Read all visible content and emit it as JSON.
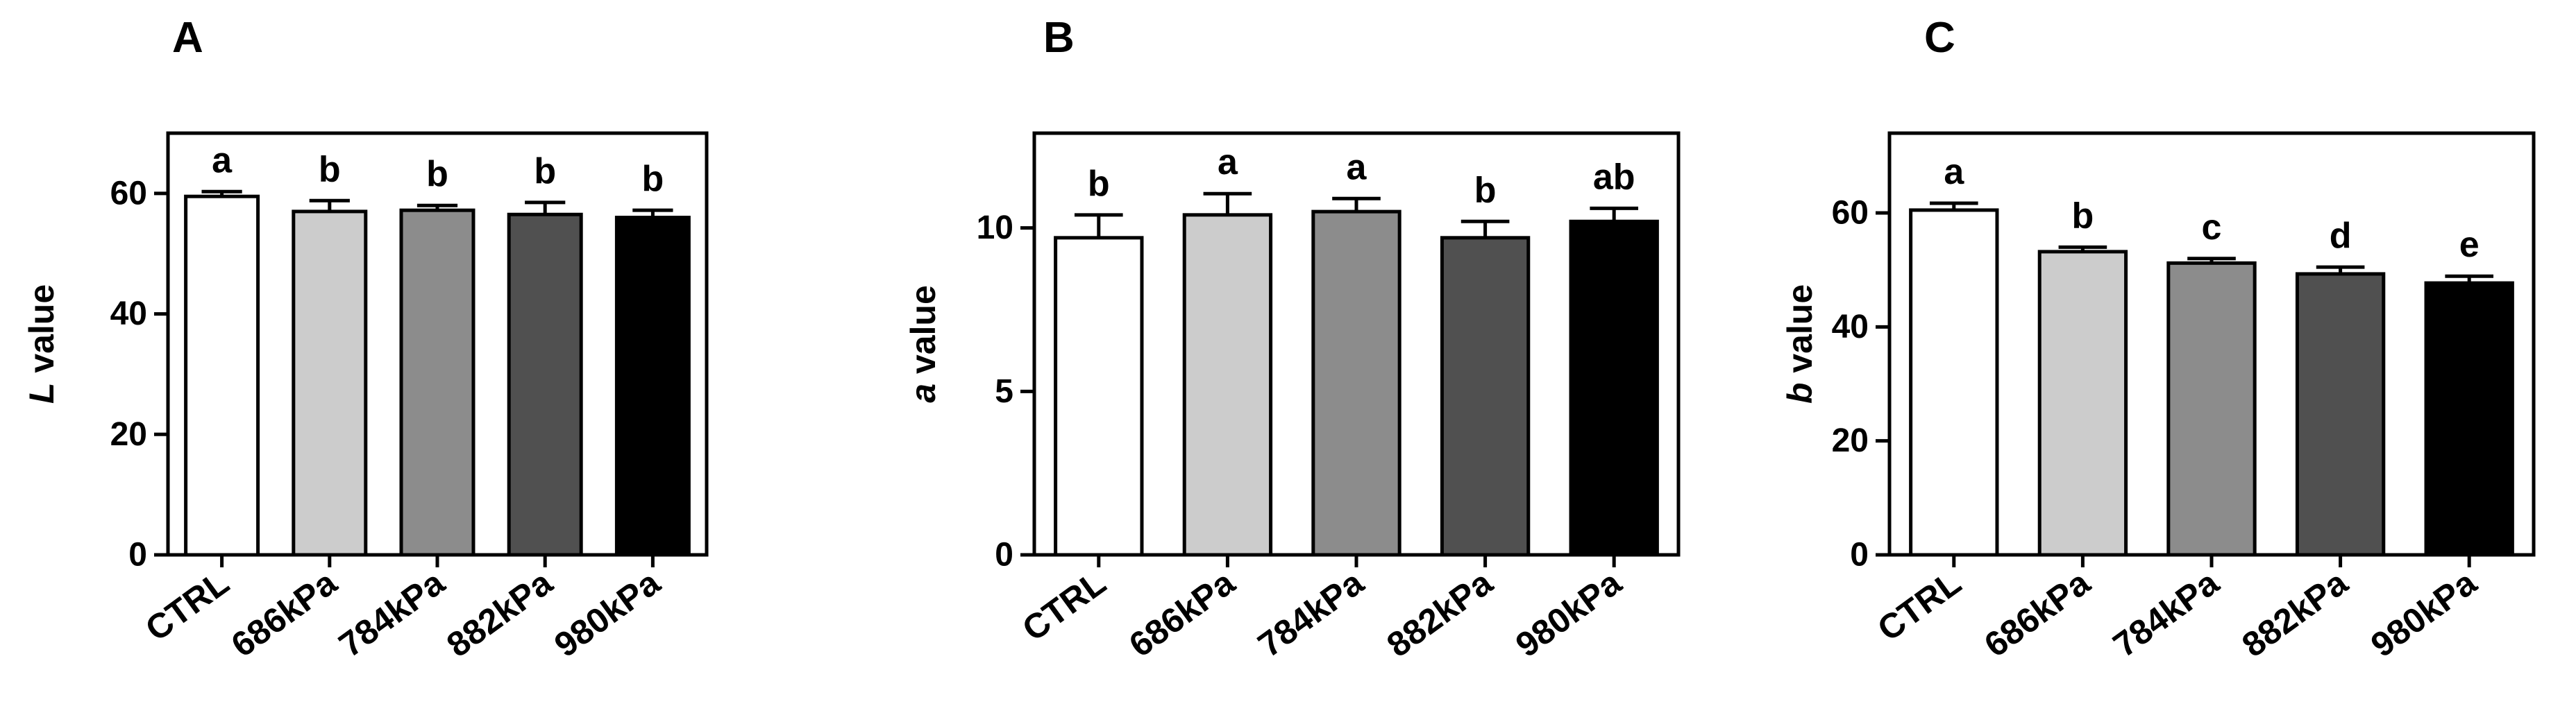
{
  "chart_data": [
    {
      "type": "bar",
      "panel": "A",
      "ylabel_italic": "L",
      "ylabel_rest": " value",
      "categories": [
        "CTRL",
        "686kPa",
        "784kPa",
        "882kPa",
        "980kPa"
      ],
      "values": [
        59.5,
        57.0,
        57.2,
        56.5,
        56.0
      ],
      "errors": [
        0.8,
        1.8,
        0.8,
        2.0,
        1.2
      ],
      "letters": [
        "a",
        "b",
        "b",
        "b",
        "b"
      ],
      "ylim": [
        0,
        70
      ],
      "yticks": [
        0,
        20,
        40,
        60
      ],
      "colors": [
        "#ffffff",
        "#cccccc",
        "#8c8c8c",
        "#505050",
        "#000000"
      ]
    },
    {
      "type": "bar",
      "panel": "B",
      "ylabel_italic": "a",
      "ylabel_rest": " value",
      "categories": [
        "CTRL",
        "686kPa",
        "784kPa",
        "882kPa",
        "980kPa"
      ],
      "values": [
        9.7,
        10.4,
        10.5,
        9.7,
        10.2
      ],
      "errors": [
        0.7,
        0.65,
        0.4,
        0.5,
        0.4
      ],
      "letters": [
        "b",
        "a",
        "a",
        "b",
        "ab"
      ],
      "ylim": [
        0,
        12.9
      ],
      "yticks": [
        0,
        5,
        10
      ],
      "colors": [
        "#ffffff",
        "#cccccc",
        "#8c8c8c",
        "#505050",
        "#000000"
      ]
    },
    {
      "type": "bar",
      "panel": "C",
      "ylabel_italic": "b",
      "ylabel_rest": " value",
      "categories": [
        "CTRL",
        "686kPa",
        "784kPa",
        "882kPa",
        "980kPa"
      ],
      "values": [
        60.5,
        53.2,
        51.2,
        49.3,
        47.7
      ],
      "errors": [
        1.2,
        0.8,
        0.8,
        1.2,
        1.2
      ],
      "letters": [
        "a",
        "b",
        "c",
        "d",
        "e"
      ],
      "ylim": [
        0,
        74
      ],
      "yticks": [
        0,
        20,
        40,
        60
      ],
      "colors": [
        "#ffffff",
        "#cccccc",
        "#8c8c8c",
        "#505050",
        "#000000"
      ]
    }
  ]
}
